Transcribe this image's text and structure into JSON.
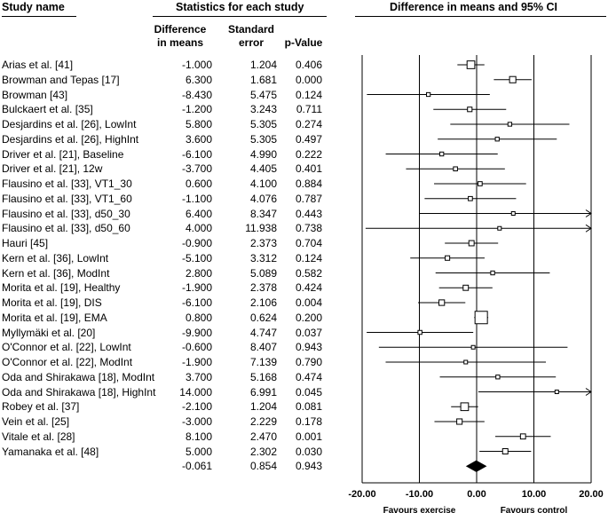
{
  "headers": {
    "study_name": "Study name",
    "stats": "Statistics for each study",
    "plot": "Difference in means and 95% CI",
    "col_diff_line1": "Difference",
    "col_diff_line2": "in means",
    "col_se_line1": "Standard",
    "col_se_line2": "error",
    "col_p": "p-Value"
  },
  "chart_data": {
    "type": "forest",
    "title": "Difference in means and 95% CI",
    "xlim": [
      -20,
      20
    ],
    "xticks": [
      "-20.00",
      "-10.00",
      "0.00",
      "10.00",
      "20.00"
    ],
    "tick_values": [
      -20,
      -10,
      0,
      10,
      20
    ],
    "favours_left": "Favours exercise",
    "favours_right": "Favours control",
    "rows": [
      {
        "study": "Arias et al. [41]",
        "diff": "-1.000",
        "se": "1.204",
        "p": "0.406",
        "d": -1.0,
        "s": 1.204
      },
      {
        "study": "Browman and Tepas [17]",
        "diff": "6.300",
        "se": "1.681",
        "p": "0.000",
        "d": 6.3,
        "s": 1.681
      },
      {
        "study": "Browman [43]",
        "diff": "-8.430",
        "se": "5.475",
        "p": "0.124",
        "d": -8.43,
        "s": 5.475
      },
      {
        "study": "Bulckaert et al. [35]",
        "diff": "-1.200",
        "se": "3.243",
        "p": "0.711",
        "d": -1.2,
        "s": 3.243
      },
      {
        "study": "Desjardins et al. [26], LowInt",
        "diff": "5.800",
        "se": "5.305",
        "p": "0.274",
        "d": 5.8,
        "s": 5.305
      },
      {
        "study": "Desjardins et al. [26], HighInt",
        "diff": "3.600",
        "se": "5.305",
        "p": "0.497",
        "d": 3.6,
        "s": 5.305
      },
      {
        "study": "Driver et al. [21], Baseline",
        "diff": "-6.100",
        "se": "4.990",
        "p": "0.222",
        "d": -6.1,
        "s": 4.99
      },
      {
        "study": "Driver et al. [21], 12w",
        "diff": "-3.700",
        "se": "4.405",
        "p": "0.401",
        "d": -3.7,
        "s": 4.405
      },
      {
        "study": "Flausino et al. [33], VT1_30",
        "diff": "0.600",
        "se": "4.100",
        "p": "0.884",
        "d": 0.6,
        "s": 4.1
      },
      {
        "study": "Flausino et al. [33], VT1_60",
        "diff": "-1.100",
        "se": "4.076",
        "p": "0.787",
        "d": -1.1,
        "s": 4.076
      },
      {
        "study": "Flausino et al. [33], d50_30",
        "diff": "6.400",
        "se": "8.347",
        "p": "0.443",
        "d": 6.4,
        "s": 8.347
      },
      {
        "study": "Flausino et al. [33], d50_60",
        "diff": "4.000",
        "se": "11.938",
        "p": "0.738",
        "d": 4.0,
        "s": 11.938
      },
      {
        "study": "Hauri [45]",
        "diff": "-0.900",
        "se": "2.373",
        "p": "0.704",
        "d": -0.9,
        "s": 2.373
      },
      {
        "study": "Kern et al. [36], LowInt",
        "diff": "-5.100",
        "se": "3.312",
        "p": "0.124",
        "d": -5.1,
        "s": 3.312
      },
      {
        "study": "Kern et al. [36], ModInt",
        "diff": "2.800",
        "se": "5.089",
        "p": "0.582",
        "d": 2.8,
        "s": 5.089
      },
      {
        "study": "Morita et al. [19], Healthy",
        "diff": "-1.900",
        "se": "2.378",
        "p": "0.424",
        "d": -1.9,
        "s": 2.378
      },
      {
        "study": "Morita et al. [19], DIS",
        "diff": "-6.100",
        "se": "2.106",
        "p": "0.004",
        "d": -6.1,
        "s": 2.106
      },
      {
        "study": "Morita et al. [19], EMA",
        "diff": "0.800",
        "se": "0.624",
        "p": "0.200",
        "d": 0.8,
        "s": 0.624
      },
      {
        "study": "Myllymäki et al. [20]",
        "diff": "-9.900",
        "se": "4.747",
        "p": "0.037",
        "d": -9.9,
        "s": 4.747
      },
      {
        "study": "O'Connor et al. [22], LowInt",
        "diff": "-0.600",
        "se": "8.407",
        "p": "0.943",
        "d": -0.6,
        "s": 8.407
      },
      {
        "study": "O'Connor et al. [22], ModInt",
        "diff": "-1.900",
        "se": "7.139",
        "p": "0.790",
        "d": -1.9,
        "s": 7.139
      },
      {
        "study": "Oda and Shirakawa [18], ModInt",
        "diff": "3.700",
        "se": "5.168",
        "p": "0.474",
        "d": 3.7,
        "s": 5.168
      },
      {
        "study": "Oda and Shirakawa [18], HighInt",
        "diff": "14.000",
        "se": "6.991",
        "p": "0.045",
        "d": 14.0,
        "s": 6.991
      },
      {
        "study": "Robey et al. [37]",
        "diff": "-2.100",
        "se": "1.204",
        "p": "0.081",
        "d": -2.1,
        "s": 1.204
      },
      {
        "study": "Vein et al. [25]",
        "diff": "-3.000",
        "se": "2.229",
        "p": "0.178",
        "d": -3.0,
        "s": 2.229
      },
      {
        "study": "Vitale et al. [28]",
        "diff": "8.100",
        "se": "2.470",
        "p": "0.001",
        "d": 8.1,
        "s": 2.47
      },
      {
        "study": "Yamanaka et al. [48]",
        "diff": "5.000",
        "se": "2.302",
        "p": "0.030",
        "d": 5.0,
        "s": 2.302
      }
    ],
    "summary": {
      "diff": "-0.061",
      "se": "0.854",
      "p": "0.943",
      "d": -0.061,
      "s": 0.854
    }
  }
}
